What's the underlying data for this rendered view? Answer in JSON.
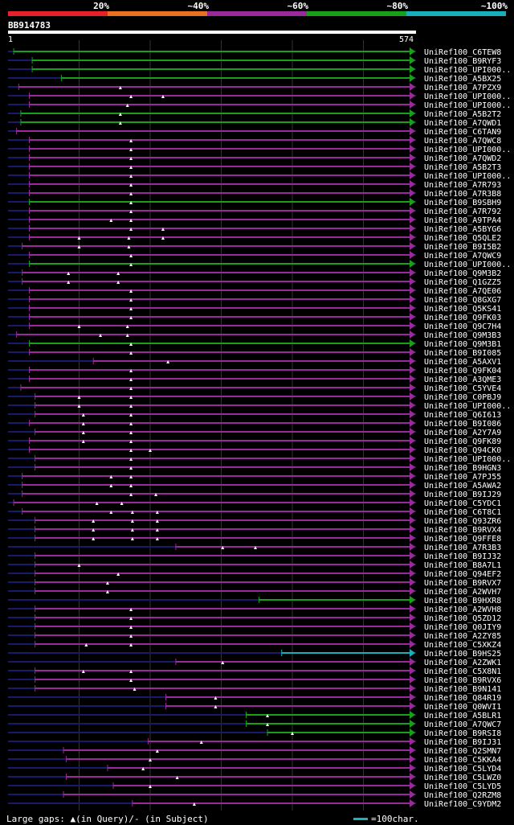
{
  "header": {
    "legend": [
      {
        "label": "20%",
        "color": "#e8202a"
      },
      {
        "label": "~40%",
        "color": "#e87020"
      },
      {
        "label": "~60%",
        "color": "#9a2a9a"
      },
      {
        "label": "~80%",
        "color": "#18a018"
      },
      {
        "label": "~100%",
        "color": "#18b0b8"
      }
    ],
    "query_id": "BB914783",
    "scale_start": "1",
    "scale_end": "574"
  },
  "query_length": 574,
  "hits": [
    {
      "name": "UniRef100_C6TEW8",
      "start": 8,
      "end": 574,
      "color": "green",
      "gaps": []
    },
    {
      "name": "UniRef100_B9RYF3",
      "start": 34,
      "end": 574,
      "color": "green",
      "gaps": []
    },
    {
      "name": "UniRef100_UPI000..",
      "start": 34,
      "end": 574,
      "color": "green",
      "gaps": []
    },
    {
      "name": "UniRef100_A5BX25",
      "start": 75,
      "end": 574,
      "color": "green",
      "gaps": []
    },
    {
      "name": "UniRef100_A7PZX9",
      "start": 15,
      "end": 574,
      "color": "purple",
      "gaps": [
        158
      ]
    },
    {
      "name": "UniRef100_UPI000..",
      "start": 30,
      "end": 574,
      "color": "purple",
      "gaps": [
        173,
        218
      ]
    },
    {
      "name": "UniRef100_UPI000..",
      "start": 30,
      "end": 574,
      "color": "purple",
      "gaps": [
        168
      ]
    },
    {
      "name": "UniRef100_A5B2T2",
      "start": 18,
      "end": 574,
      "color": "green",
      "gaps": [
        158
      ]
    },
    {
      "name": "UniRef100_A7QWD1",
      "start": 18,
      "end": 574,
      "color": "green",
      "gaps": [
        158
      ]
    },
    {
      "name": "UniRef100_C6TAN9",
      "start": 12,
      "end": 574,
      "color": "purple",
      "gaps": []
    },
    {
      "name": "UniRef100_A7QWC8",
      "start": 30,
      "end": 574,
      "color": "purple",
      "gaps": [
        173
      ]
    },
    {
      "name": "UniRef100_UPI000..",
      "start": 30,
      "end": 574,
      "color": "purple",
      "gaps": [
        173
      ]
    },
    {
      "name": "UniRef100_A7QWD2",
      "start": 30,
      "end": 574,
      "color": "purple",
      "gaps": [
        173
      ]
    },
    {
      "name": "UniRef100_A5B2T3",
      "start": 30,
      "end": 574,
      "color": "purple",
      "gaps": [
        173
      ]
    },
    {
      "name": "UniRef100_UPI000..",
      "start": 30,
      "end": 574,
      "color": "purple",
      "gaps": [
        173
      ]
    },
    {
      "name": "UniRef100_A7R793",
      "start": 30,
      "end": 574,
      "color": "purple",
      "gaps": [
        173
      ]
    },
    {
      "name": "UniRef100_A7R3B8",
      "start": 30,
      "end": 574,
      "color": "purple",
      "gaps": [
        173
      ]
    },
    {
      "name": "UniRef100_B9SBH9",
      "start": 30,
      "end": 574,
      "color": "green",
      "gaps": [
        173
      ]
    },
    {
      "name": "UniRef100_A7R792",
      "start": 30,
      "end": 574,
      "color": "purple",
      "gaps": [
        173
      ]
    },
    {
      "name": "UniRef100_A9TPA4",
      "start": 30,
      "end": 574,
      "color": "purple",
      "gaps": [
        145,
        173
      ]
    },
    {
      "name": "UniRef100_A5BYG6",
      "start": 30,
      "end": 574,
      "color": "purple",
      "gaps": [
        173,
        218
      ]
    },
    {
      "name": "UniRef100_Q5QLE2",
      "start": 30,
      "end": 574,
      "color": "purple",
      "gaps": [
        100,
        170,
        218
      ]
    },
    {
      "name": "UniRef100_B9I5B2",
      "start": 20,
      "end": 574,
      "color": "purple",
      "gaps": [
        100,
        170
      ]
    },
    {
      "name": "UniRef100_A7QWC9",
      "start": 30,
      "end": 574,
      "color": "purple",
      "gaps": [
        173
      ]
    },
    {
      "name": "UniRef100_UPI000..",
      "start": 30,
      "end": 574,
      "color": "green",
      "gaps": [
        173
      ]
    },
    {
      "name": "UniRef100_Q9M3B2",
      "start": 20,
      "end": 574,
      "color": "purple",
      "gaps": [
        85,
        155
      ]
    },
    {
      "name": "UniRef100_Q1GZZ5",
      "start": 20,
      "end": 574,
      "color": "purple",
      "gaps": [
        85,
        155
      ]
    },
    {
      "name": "UniRef100_A7QE06",
      "start": 30,
      "end": 574,
      "color": "purple",
      "gaps": [
        173
      ]
    },
    {
      "name": "UniRef100_Q8GXG7",
      "start": 30,
      "end": 574,
      "color": "purple",
      "gaps": [
        173
      ]
    },
    {
      "name": "UniRef100_Q5KS41",
      "start": 30,
      "end": 574,
      "color": "purple",
      "gaps": [
        173
      ]
    },
    {
      "name": "UniRef100_Q9FK03",
      "start": 30,
      "end": 574,
      "color": "purple",
      "gaps": [
        173
      ]
    },
    {
      "name": "UniRef100_Q9C7H4",
      "start": 30,
      "end": 574,
      "color": "purple",
      "gaps": [
        100,
        168
      ]
    },
    {
      "name": "UniRef100_Q9M3B3",
      "start": 12,
      "end": 574,
      "color": "purple",
      "gaps": [
        130,
        168
      ]
    },
    {
      "name": "UniRef100_Q9M3B1",
      "start": 30,
      "end": 574,
      "color": "green",
      "gaps": [
        173
      ]
    },
    {
      "name": "UniRef100_B9I085",
      "start": 30,
      "end": 574,
      "color": "purple",
      "gaps": [
        173
      ]
    },
    {
      "name": "UniRef100_A5AXV1",
      "start": 120,
      "end": 574,
      "color": "purple",
      "gaps": [
        225
      ]
    },
    {
      "name": "UniRef100_Q9FK04",
      "start": 30,
      "end": 574,
      "color": "purple",
      "gaps": [
        173
      ]
    },
    {
      "name": "UniRef100_A3QME3",
      "start": 30,
      "end": 574,
      "color": "purple",
      "gaps": [
        173
      ]
    },
    {
      "name": "UniRef100_C5YVE4",
      "start": 18,
      "end": 574,
      "color": "purple",
      "gaps": [
        173
      ]
    },
    {
      "name": "UniRef100_C0PBJ9",
      "start": 38,
      "end": 574,
      "color": "purple",
      "gaps": [
        100,
        173
      ]
    },
    {
      "name": "UniRef100_UPI000..",
      "start": 38,
      "end": 574,
      "color": "purple",
      "gaps": [
        100,
        173
      ]
    },
    {
      "name": "UniRef100_Q6I613",
      "start": 38,
      "end": 574,
      "color": "purple",
      "gaps": [
        106,
        173
      ]
    },
    {
      "name": "UniRef100_B9I086",
      "start": 30,
      "end": 574,
      "color": "purple",
      "gaps": [
        106,
        173
      ]
    },
    {
      "name": "UniRef100_A2Y7A9",
      "start": 38,
      "end": 574,
      "color": "purple",
      "gaps": [
        106,
        173
      ]
    },
    {
      "name": "UniRef100_Q9FK89",
      "start": 30,
      "end": 574,
      "color": "purple",
      "gaps": [
        106,
        173
      ]
    },
    {
      "name": "UniRef100_Q94CK0",
      "start": 30,
      "end": 574,
      "color": "purple",
      "gaps": [
        173,
        200
      ]
    },
    {
      "name": "UniRef100_UPI000..",
      "start": 38,
      "end": 574,
      "color": "purple",
      "gaps": [
        173
      ]
    },
    {
      "name": "UniRef100_B9HGN3",
      "start": 38,
      "end": 574,
      "color": "purple",
      "gaps": [
        173
      ]
    },
    {
      "name": "UniRef100_A7PJ55",
      "start": 20,
      "end": 574,
      "color": "purple",
      "gaps": [
        145,
        173
      ]
    },
    {
      "name": "UniRef100_A5AWA2",
      "start": 20,
      "end": 574,
      "color": "purple",
      "gaps": [
        145,
        173
      ]
    },
    {
      "name": "UniRef100_B9IJ29",
      "start": 20,
      "end": 574,
      "color": "purple",
      "gaps": [
        173,
        208
      ]
    },
    {
      "name": "UniRef100_C5YDC1",
      "start": 8,
      "end": 574,
      "color": "purple",
      "gaps": [
        125,
        160
      ]
    },
    {
      "name": "UniRef100_C6T8C1",
      "start": 20,
      "end": 574,
      "color": "purple",
      "gaps": [
        145,
        175,
        210
      ]
    },
    {
      "name": "UniRef100_Q93ZR6",
      "start": 38,
      "end": 574,
      "color": "purple",
      "gaps": [
        120,
        175,
        210
      ]
    },
    {
      "name": "UniRef100_B9RVX4",
      "start": 38,
      "end": 574,
      "color": "purple",
      "gaps": [
        120,
        175,
        210
      ]
    },
    {
      "name": "UniRef100_Q9FFE8",
      "start": 38,
      "end": 574,
      "color": "purple",
      "gaps": [
        120,
        175,
        210
      ]
    },
    {
      "name": "UniRef100_A7R3B3",
      "start": 236,
      "end": 574,
      "color": "purple",
      "gaps": [
        302,
        348
      ]
    },
    {
      "name": "UniRef100_B9IJ32",
      "start": 38,
      "end": 574,
      "color": "purple",
      "gaps": []
    },
    {
      "name": "UniRef100_B8A7L1",
      "start": 38,
      "end": 574,
      "color": "purple",
      "gaps": [
        100
      ]
    },
    {
      "name": "UniRef100_Q94EF2",
      "start": 38,
      "end": 574,
      "color": "purple",
      "gaps": [
        155
      ]
    },
    {
      "name": "UniRef100_B9RVX7",
      "start": 38,
      "end": 574,
      "color": "purple",
      "gaps": [
        140
      ]
    },
    {
      "name": "UniRef100_A2WVH7",
      "start": 38,
      "end": 574,
      "color": "purple",
      "gaps": [
        140
      ]
    },
    {
      "name": "UniRef100_B9HXR8",
      "start": 353,
      "end": 574,
      "color": "green",
      "gaps": []
    },
    {
      "name": "UniRef100_A2WVH8",
      "start": 38,
      "end": 574,
      "color": "purple",
      "gaps": [
        173
      ]
    },
    {
      "name": "UniRef100_Q5ZD12",
      "start": 38,
      "end": 574,
      "color": "purple",
      "gaps": [
        173
      ]
    },
    {
      "name": "UniRef100_Q0JIY9",
      "start": 38,
      "end": 574,
      "color": "purple",
      "gaps": [
        173
      ]
    },
    {
      "name": "UniRef100_A2ZY85",
      "start": 38,
      "end": 574,
      "color": "purple",
      "gaps": [
        173
      ]
    },
    {
      "name": "UniRef100_C5XKZ4",
      "start": 38,
      "end": 574,
      "color": "purple",
      "gaps": [
        110,
        173
      ]
    },
    {
      "name": "UniRef100_B9HS25",
      "start": 385,
      "end": 574,
      "color": "cyan",
      "gaps": []
    },
    {
      "name": "UniRef100_A2ZWK1",
      "start": 236,
      "end": 574,
      "color": "purple",
      "gaps": [
        302
      ]
    },
    {
      "name": "UniRef100_C5X8N1",
      "start": 38,
      "end": 574,
      "color": "purple",
      "gaps": [
        106,
        173
      ]
    },
    {
      "name": "UniRef100_B9RVX6",
      "start": 38,
      "end": 574,
      "color": "purple",
      "gaps": [
        173
      ]
    },
    {
      "name": "UniRef100_B9N141",
      "start": 38,
      "end": 574,
      "color": "purple",
      "gaps": [
        178
      ]
    },
    {
      "name": "UniRef100_Q84R19",
      "start": 222,
      "end": 574,
      "color": "purple",
      "gaps": [
        292
      ]
    },
    {
      "name": "UniRef100_Q0WVI1",
      "start": 222,
      "end": 574,
      "color": "purple",
      "gaps": [
        292
      ]
    },
    {
      "name": "UniRef100_A5BLR1",
      "start": 335,
      "end": 574,
      "color": "green",
      "gaps": [
        365
      ]
    },
    {
      "name": "UniRef100_A7QWC7",
      "start": 335,
      "end": 574,
      "color": "green",
      "gaps": [
        365
      ]
    },
    {
      "name": "UniRef100_B9RSI8",
      "start": 365,
      "end": 574,
      "color": "green",
      "gaps": [
        400
      ]
    },
    {
      "name": "UniRef100_B9IJ31",
      "start": 197,
      "end": 574,
      "color": "purple",
      "gaps": [
        272
      ]
    },
    {
      "name": "UniRef100_Q2SMN7",
      "start": 78,
      "end": 574,
      "color": "purple",
      "gaps": [
        210
      ]
    },
    {
      "name": "UniRef100_C5KKA4",
      "start": 82,
      "end": 574,
      "color": "purple",
      "gaps": [
        200
      ]
    },
    {
      "name": "UniRef100_C5LYD4",
      "start": 140,
      "end": 574,
      "color": "purple",
      "gaps": [
        190
      ]
    },
    {
      "name": "UniRef100_C5LWZ0",
      "start": 82,
      "end": 574,
      "color": "purple",
      "gaps": [
        238
      ]
    },
    {
      "name": "UniRef100_C5LYD5",
      "start": 148,
      "end": 574,
      "color": "purple",
      "gaps": [
        200
      ]
    },
    {
      "name": "UniRef100_Q2RZM8",
      "start": 78,
      "end": 574,
      "color": "purple",
      "gaps": []
    },
    {
      "name": "UniRef100_C9YDM2",
      "start": 175,
      "end": 574,
      "color": "purple",
      "gaps": [
        262
      ]
    }
  ],
  "footer": {
    "text": "Large gaps: ▲(in Query)/- (in Subject)",
    "scale_label": "=100char."
  }
}
